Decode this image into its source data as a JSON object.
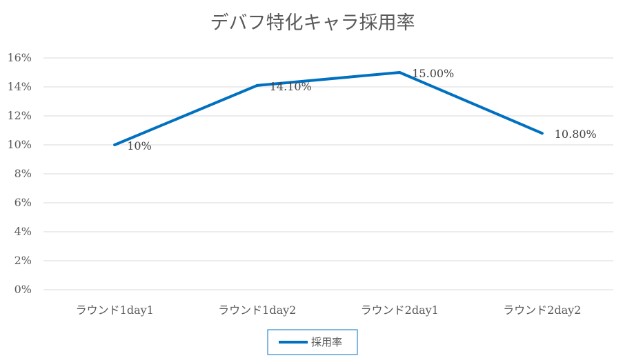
{
  "chart_data": {
    "type": "line",
    "title": "デバフ特化キャラ採用率",
    "categories": [
      "ラウンド1day1",
      "ラウンド1day2",
      "ラウンド2day1",
      "ラウンド2day2"
    ],
    "series": [
      {
        "name": "採用率",
        "values": [
          10,
          14.1,
          15,
          10.8
        ],
        "data_labels": [
          "10%",
          "14.10%",
          "15.00%",
          "10.80%"
        ],
        "color": "#0070C0"
      }
    ],
    "yticks": [
      "0%",
      "2%",
      "4%",
      "6%",
      "8%",
      "10%",
      "12%",
      "14%",
      "16%"
    ],
    "ylim": [
      0,
      16
    ],
    "grid": true,
    "legend": "bottom"
  }
}
